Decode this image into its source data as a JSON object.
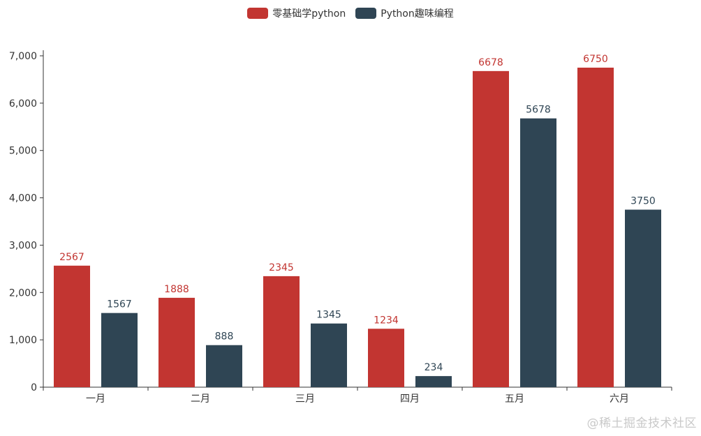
{
  "chart_data": {
    "type": "bar",
    "categories": [
      "一月",
      "二月",
      "三月",
      "四月",
      "五月",
      "六月"
    ],
    "series": [
      {
        "name": "零基础学python",
        "values": [
          2567,
          1888,
          2345,
          1234,
          6678,
          6750
        ],
        "color": "#c23531"
      },
      {
        "name": "Python趣味编程",
        "values": [
          1567,
          888,
          1345,
          234,
          5678,
          3750
        ],
        "color": "#2f4554"
      }
    ],
    "ylim": [
      0,
      7000
    ],
    "yticks": [
      0,
      1000,
      2000,
      3000,
      4000,
      5000,
      6000,
      7000
    ],
    "ytick_labels": [
      "0",
      "1,000",
      "2,000",
      "3,000",
      "4,000",
      "5,000",
      "6,000",
      "7,000"
    ],
    "grid": false,
    "legend": "top-center",
    "title": "",
    "xlabel": "",
    "ylabel": ""
  },
  "watermark": "@稀土掘金技术社区"
}
